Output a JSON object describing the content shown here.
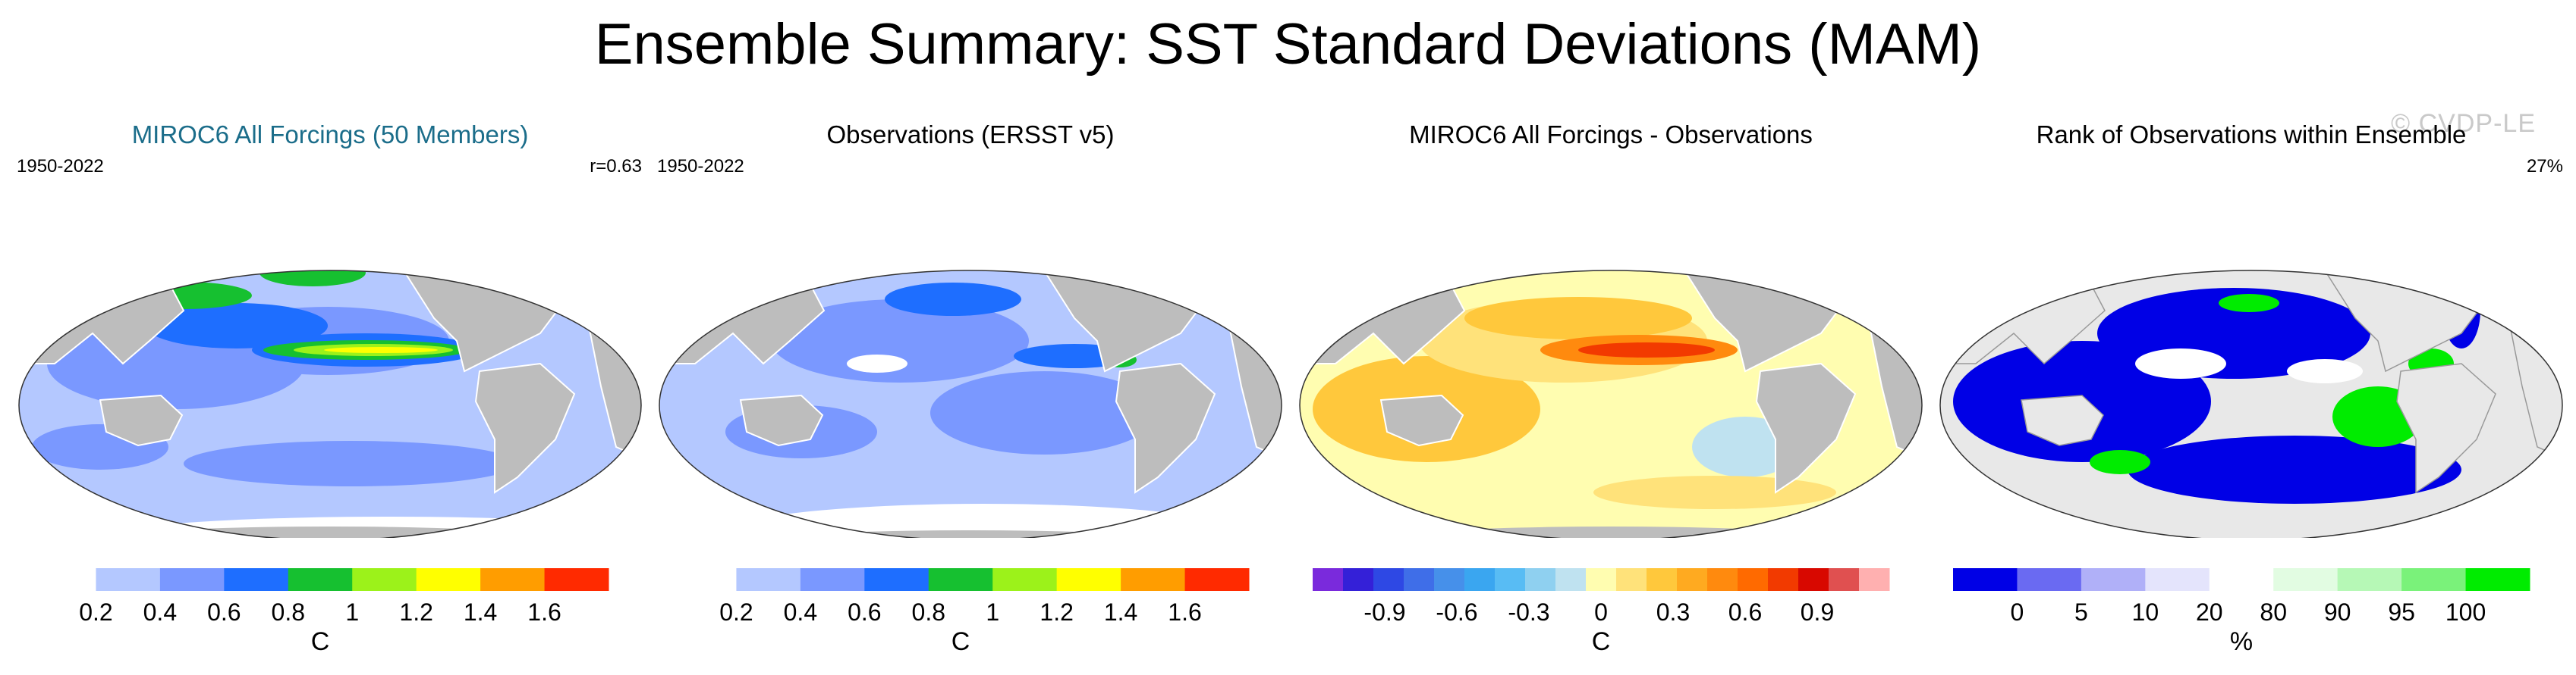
{
  "title": "Ensemble Summary: SST Standard Deviations (MAM)",
  "watermark": "© CVDP-LE",
  "colors": {
    "land": "#bdbdbd",
    "coast": "#ffffff",
    "title_blue": "#1b6d8a"
  },
  "panels": [
    {
      "title": "MIROC6 All Forcings (50 Members)",
      "left_label": "1950-2022",
      "right_label": "r=0.63",
      "colorbar": {
        "unit": "C",
        "colors": [
          "#ffffff",
          "#b4c8ff",
          "#7a98ff",
          "#1e6eff",
          "#16c030",
          "#9cf21a",
          "#ffff00",
          "#ff9d00",
          "#ff2a00"
        ],
        "ticks": [
          "0.2",
          "0.4",
          "0.6",
          "0.8",
          "1",
          "1.2",
          "1.4",
          "1.6"
        ]
      }
    },
    {
      "title": "Observations (ERSST v5)",
      "left_label": "1950-2022",
      "right_label": "",
      "colorbar": {
        "unit": "C",
        "colors": [
          "#ffffff",
          "#b4c8ff",
          "#7a98ff",
          "#1e6eff",
          "#16c030",
          "#9cf21a",
          "#ffff00",
          "#ff9d00",
          "#ff2a00"
        ],
        "ticks": [
          "0.2",
          "0.4",
          "0.6",
          "0.8",
          "1",
          "1.2",
          "1.4",
          "1.6"
        ]
      }
    },
    {
      "title": "MIROC6 All Forcings - Observations",
      "left_label": "",
      "right_label": "",
      "colorbar": {
        "unit": "C",
        "colors": [
          "#7a2adc",
          "#3420d8",
          "#2e48e4",
          "#3f6ee8",
          "#4690ea",
          "#3aa6f0",
          "#58bcf4",
          "#8fd0f0",
          "#bfe2f0",
          "#fffdb0",
          "#ffe27a",
          "#ffc83c",
          "#ffaa20",
          "#ff8a0e",
          "#ff6a00",
          "#f23a00",
          "#d80800",
          "#e05050",
          "#ffb0b0"
        ],
        "ticks": [
          "-0.9",
          "-0.6",
          "-0.3",
          "0",
          "0.3",
          "0.6",
          "0.9"
        ]
      }
    },
    {
      "title": "Rank of Observations within Ensemble",
      "left_label": "",
      "right_label": "27%",
      "colorbar": {
        "unit": "%",
        "colors": [
          "#0000e6",
          "#6a6af2",
          "#b0b0f8",
          "#e4e4fc",
          "#ffffff",
          "#e2fce2",
          "#b6f8b6",
          "#7af27a",
          "#00ec00"
        ],
        "ticks": [
          "0",
          "5",
          "10",
          "20",
          "80",
          "90",
          "95",
          "100"
        ]
      }
    }
  ]
}
